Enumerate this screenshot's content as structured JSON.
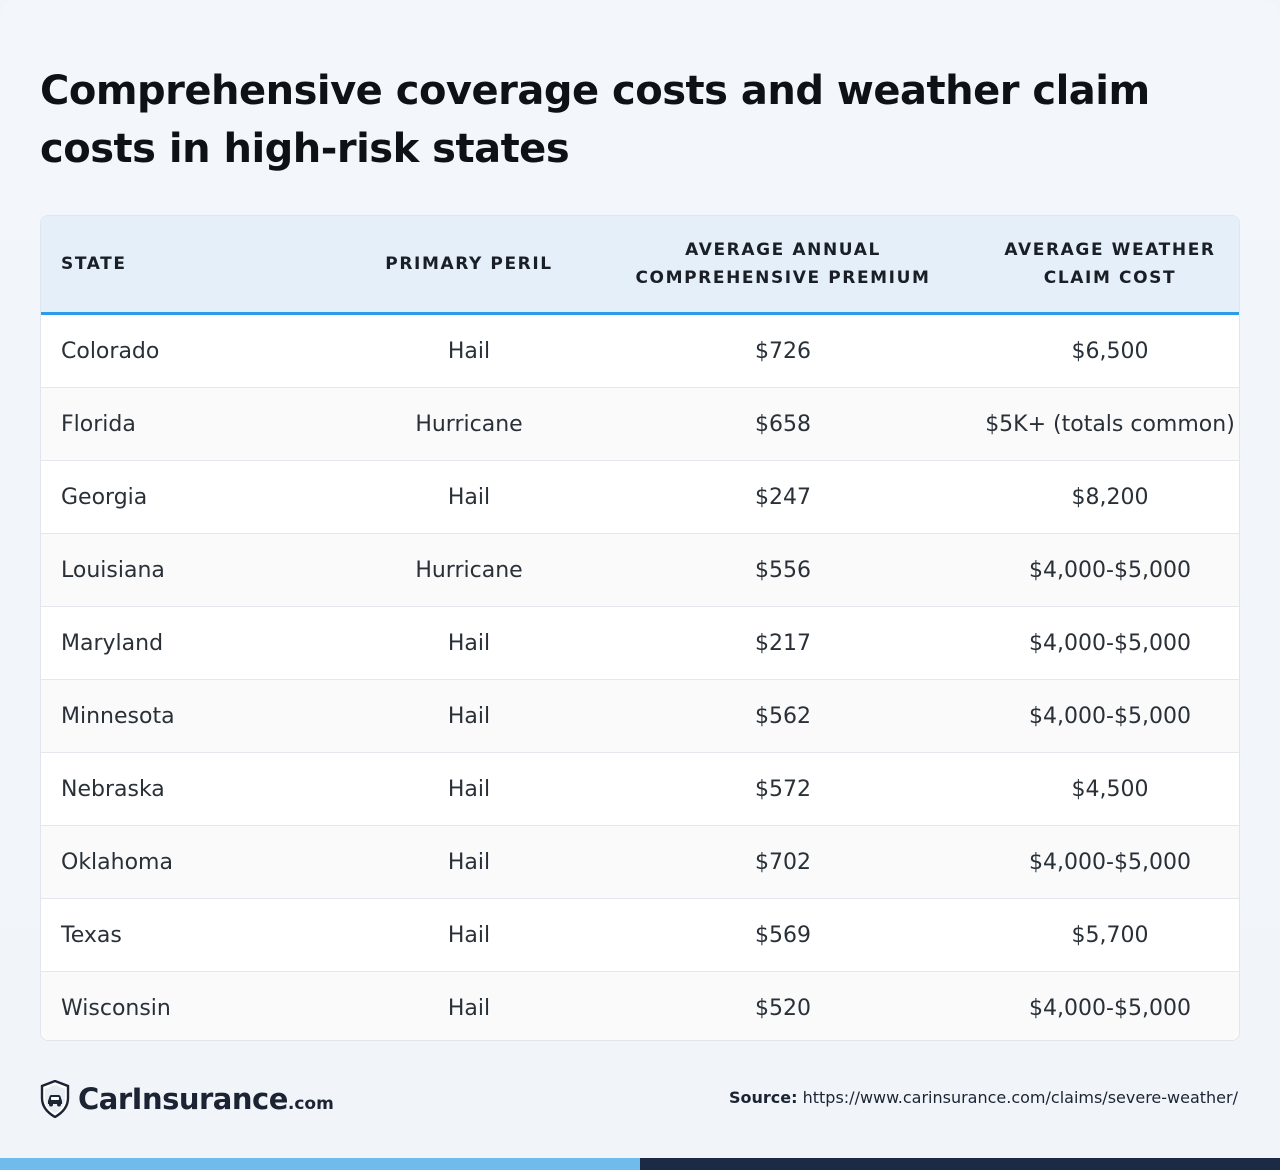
{
  "title": "Comprehensive coverage costs and weather claim costs in high-risk states",
  "table": {
    "headers": {
      "state": "STATE",
      "peril": "PRIMARY PERIL",
      "premium_line1": "AVERAGE ANNUAL",
      "premium_line2": "COMPREHENSIVE PREMIUM",
      "claim_line1": "AVERAGE WEATHER",
      "claim_line2": "CLAIM COST"
    },
    "rows": [
      {
        "state": "Colorado",
        "peril": "Hail",
        "premium": "$726",
        "claim": "$6,500"
      },
      {
        "state": "Florida",
        "peril": "Hurricane",
        "premium": "$658",
        "claim": "$5K+ (totals common)"
      },
      {
        "state": "Georgia",
        "peril": "Hail",
        "premium": "$247",
        "claim": "$8,200"
      },
      {
        "state": "Louisiana",
        "peril": "Hurricane",
        "premium": "$556",
        "claim": "$4,000-$5,000"
      },
      {
        "state": "Maryland",
        "peril": "Hail",
        "premium": "$217",
        "claim": "$4,000-$5,000"
      },
      {
        "state": "Minnesota",
        "peril": "Hail",
        "premium": "$562",
        "claim": "$4,000-$5,000"
      },
      {
        "state": "Nebraska",
        "peril": "Hail",
        "premium": "$572",
        "claim": "$4,500"
      },
      {
        "state": "Oklahoma",
        "peril": "Hail",
        "premium": "$702",
        "claim": "$4,000-$5,000"
      },
      {
        "state": "Texas",
        "peril": "Hail",
        "premium": "$569",
        "claim": "$5,700"
      },
      {
        "state": "Wisconsin",
        "peril": "Hail",
        "premium": "$520",
        "claim": "$4,000-$5,000"
      }
    ]
  },
  "footer": {
    "brand_main": "CarInsurance",
    "brand_suffix": ".com",
    "source_label": "Source:",
    "source_url": "https://www.carinsurance.com/claims/severe-weather/"
  },
  "colors": {
    "header_bg": "#e5eff9",
    "header_rule": "#2b9bea",
    "bar_left": "#6fbcec",
    "bar_right": "#1d2a45"
  },
  "icons": {
    "logo": "shield-car-icon"
  }
}
